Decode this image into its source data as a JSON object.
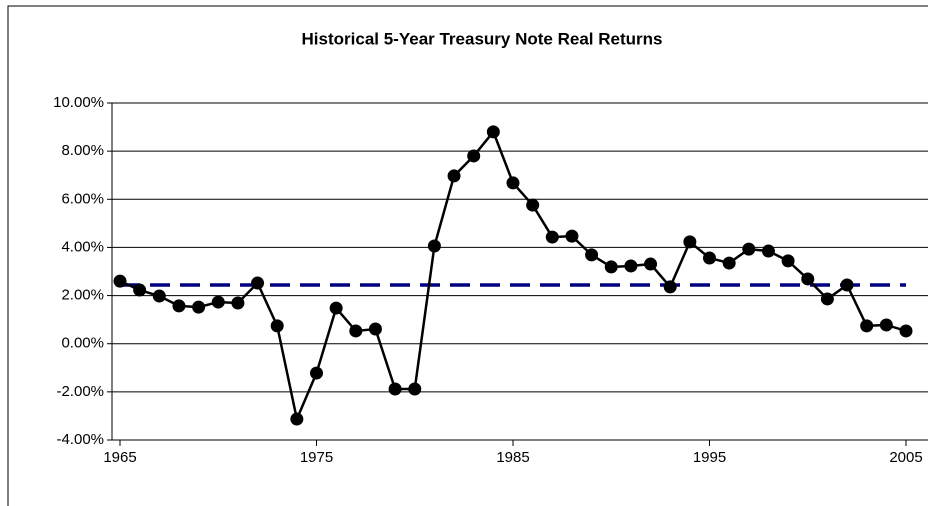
{
  "chart_data": {
    "type": "line",
    "title": "Historical 5-Year Treasury Note Real Returns",
    "x": [
      1965,
      1966,
      1967,
      1968,
      1969,
      1970,
      1971,
      1972,
      1973,
      1974,
      1975,
      1976,
      1977,
      1978,
      1979,
      1980,
      1981,
      1982,
      1983,
      1984,
      1985,
      1986,
      1987,
      1988,
      1989,
      1990,
      1991,
      1992,
      1993,
      1994,
      1995,
      1996,
      1997,
      1998,
      1999,
      2000,
      2001,
      2002,
      2003,
      2004,
      2005
    ],
    "values": [
      2.6,
      2.23,
      1.98,
      1.57,
      1.52,
      1.73,
      1.69,
      2.52,
      0.74,
      -3.13,
      -1.22,
      1.48,
      0.53,
      0.61,
      -1.88,
      -1.88,
      4.06,
      6.97,
      7.8,
      8.8,
      6.68,
      5.76,
      4.43,
      4.47,
      3.69,
      3.19,
      3.23,
      3.31,
      2.36,
      4.23,
      3.56,
      3.35,
      3.93,
      3.85,
      3.44,
      2.69,
      1.86,
      2.44,
      0.74,
      0.78,
      0.53
    ],
    "color": "#000000",
    "reference_line": {
      "value": 2.44,
      "color": "#000080"
    },
    "xlim": [
      1965,
      2005
    ],
    "xticks": [
      1965,
      1975,
      1985,
      1995,
      2005
    ],
    "ylim": [
      -4,
      10
    ],
    "yticks": [
      {
        "value": -4,
        "label": "-4.00%"
      },
      {
        "value": -2,
        "label": "-2.00%"
      },
      {
        "value": 0,
        "label": "0.00%"
      },
      {
        "value": 2,
        "label": "2.00%"
      },
      {
        "value": 4,
        "label": "4.00%"
      },
      {
        "value": 6,
        "label": "6.00%"
      },
      {
        "value": 8,
        "label": "8.00%"
      },
      {
        "value": 10,
        "label": "10.00%"
      }
    ],
    "grid": true
  }
}
